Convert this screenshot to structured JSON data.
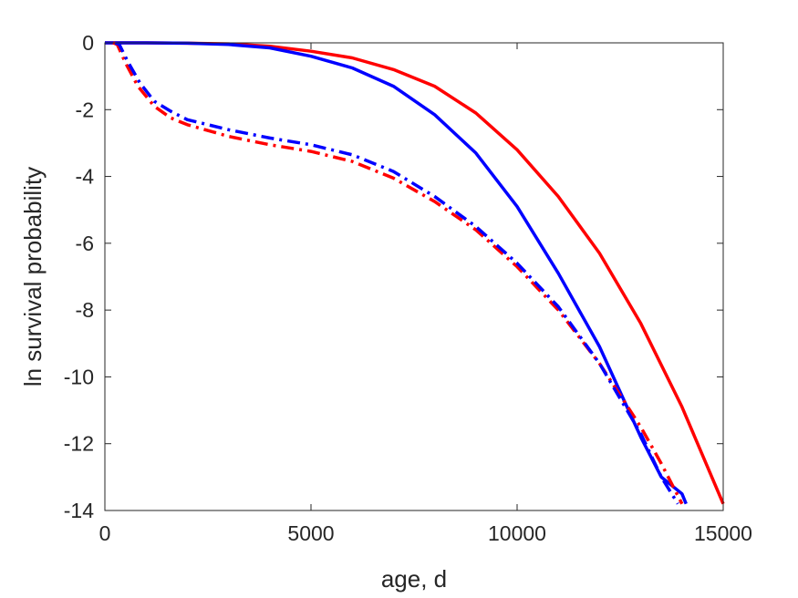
{
  "chart_data": {
    "type": "line",
    "title": "",
    "xlabel": "age, d",
    "ylabel": "ln survival probability",
    "xlim": [
      0,
      15000
    ],
    "ylim": [
      -14,
      0
    ],
    "xticks": [
      0,
      5000,
      10000,
      15000
    ],
    "yticks": [
      0,
      -2,
      -4,
      -6,
      -8,
      -10,
      -12,
      -14
    ],
    "grid": false,
    "legend": "none",
    "box": true,
    "series": [
      {
        "color": "#ff0000",
        "style": "solid",
        "x": [
          0,
          1000,
          2000,
          3000,
          4000,
          5000,
          6000,
          7000,
          8000,
          9000,
          10000,
          11000,
          12000,
          13000,
          14000,
          15000
        ],
        "y": [
          0,
          0,
          -0.01,
          -0.03,
          -0.1,
          -0.25,
          -0.45,
          -0.8,
          -1.3,
          -2.1,
          -3.2,
          -4.6,
          -6.3,
          -8.4,
          -10.9,
          -13.8
        ]
      },
      {
        "color": "#0000ff",
        "style": "solid",
        "x": [
          0,
          1000,
          2000,
          3000,
          4000,
          5000,
          6000,
          7000,
          8000,
          9000,
          10000,
          11000,
          12000,
          13000,
          13500,
          14000,
          14100
        ],
        "y": [
          0,
          0,
          -0.01,
          -0.05,
          -0.15,
          -0.4,
          -0.75,
          -1.3,
          -2.15,
          -3.3,
          -4.9,
          -6.9,
          -9.1,
          -11.8,
          -13.0,
          -13.5,
          -13.8
        ]
      },
      {
        "color": "#ff0000",
        "style": "dashdot",
        "x": [
          200,
          300,
          500,
          800,
          1200,
          1600,
          2000,
          3000,
          4000,
          5000,
          6000,
          7000,
          8000,
          9000,
          10000,
          11000,
          12000,
          13000,
          13500,
          14000
        ],
        "y": [
          0,
          -0.05,
          -0.6,
          -1.3,
          -1.9,
          -2.25,
          -2.45,
          -2.8,
          -3.05,
          -3.25,
          -3.55,
          -4.05,
          -4.75,
          -5.6,
          -6.7,
          -8.0,
          -9.6,
          -11.5,
          -12.6,
          -13.8
        ]
      },
      {
        "color": "#0000ff",
        "style": "dashdot",
        "x": [
          250,
          350,
          550,
          850,
          1200,
          1600,
          2000,
          3000,
          4000,
          5000,
          6000,
          7000,
          8000,
          9000,
          10000,
          11000,
          12000,
          13000,
          13500,
          13900
        ],
        "y": [
          0,
          -0.05,
          -0.55,
          -1.2,
          -1.75,
          -2.05,
          -2.3,
          -2.6,
          -2.85,
          -3.05,
          -3.35,
          -3.85,
          -4.6,
          -5.5,
          -6.6,
          -7.9,
          -9.6,
          -11.7,
          -13.0,
          -13.8
        ]
      }
    ]
  }
}
